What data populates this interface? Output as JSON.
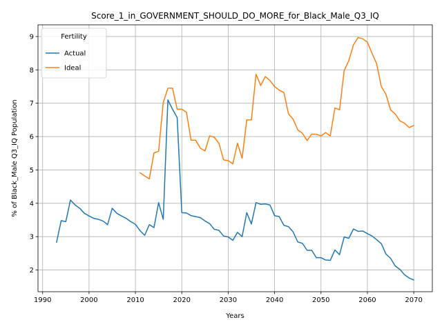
{
  "chart_data": {
    "type": "line",
    "title": "Score_1_in_GOVERNMENT_SHOULD_DO_MORE_for_Black_Male_Q3_IQ",
    "xlabel": "Years",
    "ylabel": "% of Black_Male Q3_IQ Population",
    "xlim": [
      1989,
      2074
    ],
    "ylim": [
      1.35,
      9.35
    ],
    "xticks": [
      1990,
      2000,
      2010,
      2020,
      2030,
      2040,
      2050,
      2060,
      2070
    ],
    "yticks": [
      2,
      3,
      4,
      5,
      6,
      7,
      8,
      9
    ],
    "grid": true,
    "legend": {
      "title": "Fertility",
      "position": "top-left"
    },
    "series": [
      {
        "name": "Actual",
        "color": "#1f77b4",
        "x": [
          1993,
          1994,
          1995,
          1996,
          1997,
          1998,
          1999,
          2000,
          2001,
          2002,
          2003,
          2004,
          2005,
          2006,
          2007,
          2008,
          2009,
          2010,
          2011,
          2012,
          2013,
          2014,
          2015,
          2016,
          2017,
          2018,
          2019,
          2020,
          2021,
          2022,
          2023,
          2024,
          2025,
          2026,
          2027,
          2028,
          2029,
          2030,
          2031,
          2032,
          2033,
          2034,
          2035,
          2036,
          2037,
          2038,
          2039,
          2040,
          2041,
          2042,
          2043,
          2044,
          2045,
          2046,
          2047,
          2048,
          2049,
          2050,
          2051,
          2052,
          2053,
          2054,
          2055,
          2056,
          2057,
          2058,
          2059,
          2060,
          2061,
          2062,
          2063,
          2064,
          2065,
          2066,
          2067,
          2068,
          2069,
          2070
        ],
        "values": [
          2.83,
          3.48,
          3.45,
          4.1,
          3.95,
          3.85,
          3.7,
          3.62,
          3.55,
          3.52,
          3.47,
          3.36,
          3.85,
          3.7,
          3.62,
          3.55,
          3.45,
          3.37,
          3.18,
          3.04,
          3.36,
          3.27,
          4.02,
          3.52,
          7.1,
          6.82,
          6.57,
          3.72,
          3.71,
          3.63,
          3.6,
          3.57,
          3.47,
          3.39,
          3.22,
          3.19,
          3.02,
          2.99,
          2.89,
          3.13,
          3.0,
          3.72,
          3.38,
          4.02,
          3.97,
          3.98,
          3.95,
          3.63,
          3.6,
          3.34,
          3.3,
          3.14,
          2.84,
          2.8,
          2.59,
          2.59,
          2.37,
          2.37,
          2.3,
          2.29,
          2.6,
          2.46,
          2.99,
          2.95,
          3.23,
          3.16,
          3.17,
          3.09,
          3.02,
          2.91,
          2.79,
          2.48,
          2.35,
          2.12,
          2.02,
          1.86,
          1.76,
          1.7
        ]
      },
      {
        "name": "Ideal",
        "color": "#ff7f0e",
        "x": [
          2011,
          2012,
          2013,
          2014,
          2015,
          2016,
          2017,
          2018,
          2019,
          2020,
          2021,
          2022,
          2023,
          2024,
          2025,
          2026,
          2027,
          2028,
          2029,
          2030,
          2031,
          2032,
          2033,
          2034,
          2035,
          2036,
          2037,
          2038,
          2039,
          2040,
          2041,
          2042,
          2043,
          2044,
          2045,
          2046,
          2047,
          2048,
          2049,
          2050,
          2051,
          2052,
          2053,
          2054,
          2055,
          2056,
          2057,
          2058,
          2059,
          2060,
          2061,
          2062,
          2063,
          2064,
          2065,
          2066,
          2067,
          2068,
          2069,
          2070
        ],
        "values": [
          4.91,
          4.82,
          4.73,
          5.51,
          5.56,
          7.02,
          7.45,
          7.45,
          6.82,
          6.82,
          6.73,
          5.89,
          5.89,
          5.65,
          5.57,
          6.02,
          5.98,
          5.8,
          5.3,
          5.28,
          5.18,
          5.8,
          5.35,
          6.5,
          6.5,
          7.87,
          7.53,
          7.8,
          7.68,
          7.5,
          7.39,
          7.32,
          6.68,
          6.52,
          6.2,
          6.1,
          5.88,
          6.07,
          6.07,
          6.02,
          6.12,
          6.02,
          6.86,
          6.8,
          7.98,
          8.28,
          8.75,
          8.97,
          8.93,
          8.83,
          8.5,
          8.18,
          7.5,
          7.27,
          6.8,
          6.68,
          6.47,
          6.4,
          6.27,
          6.33
        ]
      }
    ]
  }
}
